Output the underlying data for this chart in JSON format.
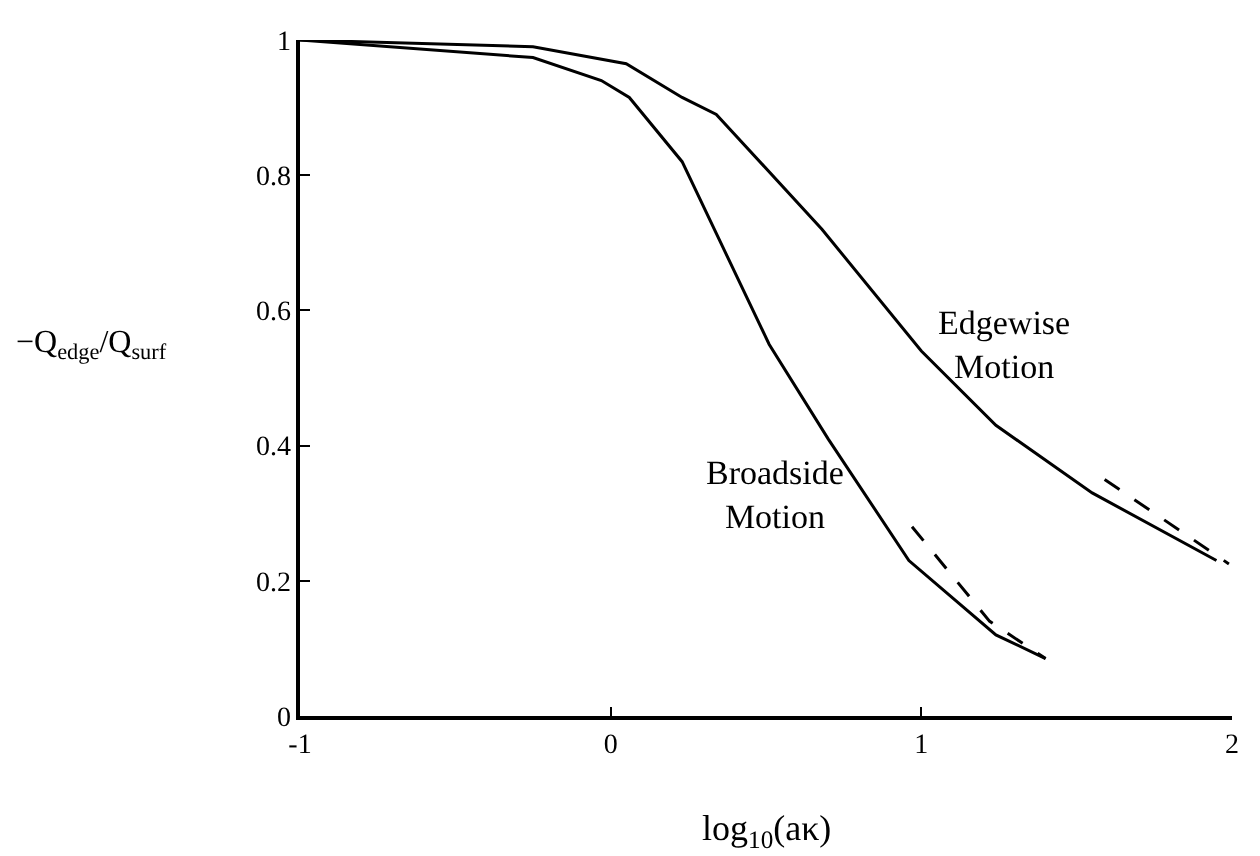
{
  "chart_data": {
    "type": "line",
    "xlabel": "log$_{10}$(aκ)",
    "ylabel": "−Q$_{edge}$/Q$_{surf}$",
    "xlim": [
      -1,
      2
    ],
    "xticks": [
      -1,
      0,
      1,
      2
    ],
    "ylim": [
      0,
      1
    ],
    "yticks": [
      0,
      0.2,
      0.4,
      0.6,
      0.8,
      1
    ],
    "marker": "none",
    "series": [
      {
        "color": "#000000",
        "line_style": "solid",
        "x": [
          -1,
          -0.25,
          -0.03,
          0.06,
          0.23,
          0.51,
          0.7,
          0.96,
          1.24,
          1.4
        ],
        "values": [
          1,
          0.974,
          0.94,
          0.915,
          0.82,
          0.55,
          0.41,
          0.23,
          0.12,
          0.085
        ]
      },
      {
        "color": "#000000",
        "line_style": "dashed",
        "x": [
          0.97,
          1.22,
          1.4
        ],
        "values": [
          0.28,
          0.14,
          0.085
        ]
      },
      {
        "color": "#000000",
        "line_style": "solid",
        "x": [
          -1,
          -0.25,
          0.05,
          0.23,
          0.34,
          0.68,
          1.0,
          1.24,
          1.55,
          1.95
        ],
        "values": [
          1,
          0.99,
          0.965,
          0.915,
          0.89,
          0.72,
          0.54,
          0.43,
          0.33,
          0.23
        ]
      },
      {
        "color": "#000000",
        "line_style": "dashed",
        "x": [
          1.59,
          1.99
        ],
        "values": [
          0.35,
          0.225
        ]
      }
    ],
    "annotations": [
      "Edgewise\nMotion",
      "Broadside\nMotion"
    ]
  }
}
